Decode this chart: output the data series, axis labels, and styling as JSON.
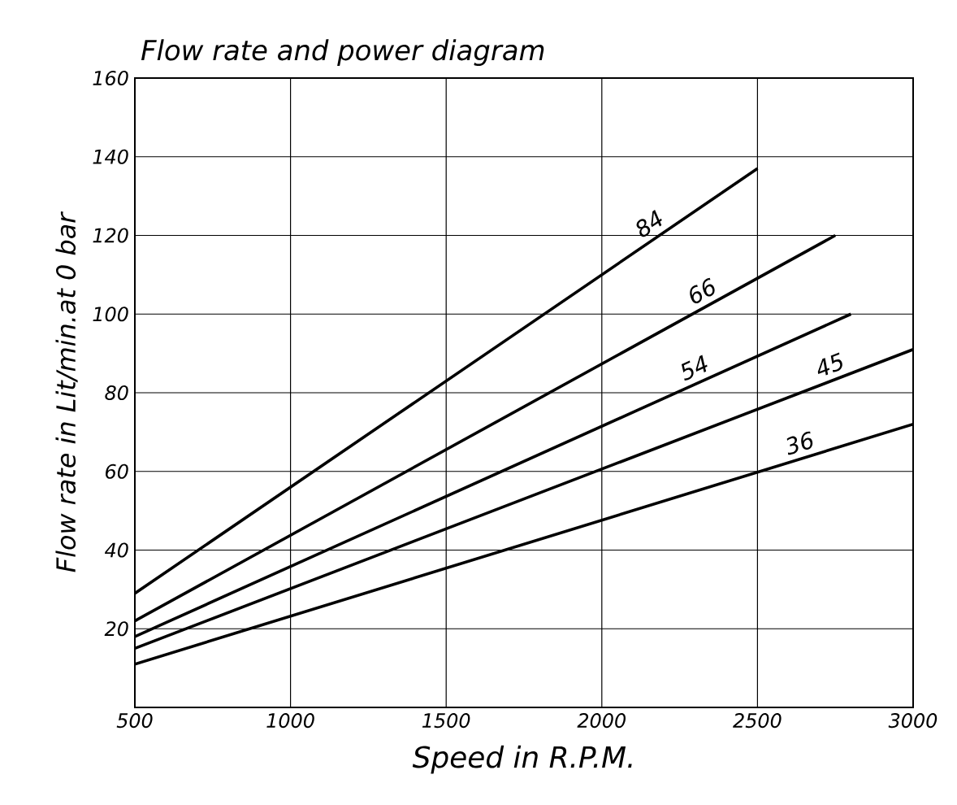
{
  "chart_data": {
    "type": "line",
    "title": "Flow rate and power diagram",
    "xlabel": "Speed in R.P.M.",
    "ylabel": "Flow rate in Lit/min.at 0 bar",
    "xlim": [
      500,
      3000
    ],
    "xticks": [
      500,
      1000,
      1500,
      2000,
      2500,
      3000
    ],
    "ylim": [
      0,
      160
    ],
    "yticks": [
      20,
      40,
      60,
      80,
      100,
      120,
      140,
      160
    ],
    "grid": true,
    "marker": "none",
    "line_style": "solid",
    "series": [
      {
        "name": "84",
        "color": "#000000",
        "x": [
          500,
          2500
        ],
        "values": [
          29,
          137
        ]
      },
      {
        "name": "66",
        "color": "#000000",
        "x": [
          500,
          2750
        ],
        "values": [
          22,
          120
        ]
      },
      {
        "name": "54",
        "color": "#000000",
        "x": [
          500,
          2800
        ],
        "values": [
          18,
          100
        ]
      },
      {
        "name": "45",
        "color": "#000000",
        "x": [
          500,
          3000
        ],
        "values": [
          15,
          91
        ]
      },
      {
        "name": "36",
        "color": "#000000",
        "x": [
          500,
          3000
        ],
        "values": [
          11,
          72
        ]
      }
    ]
  }
}
